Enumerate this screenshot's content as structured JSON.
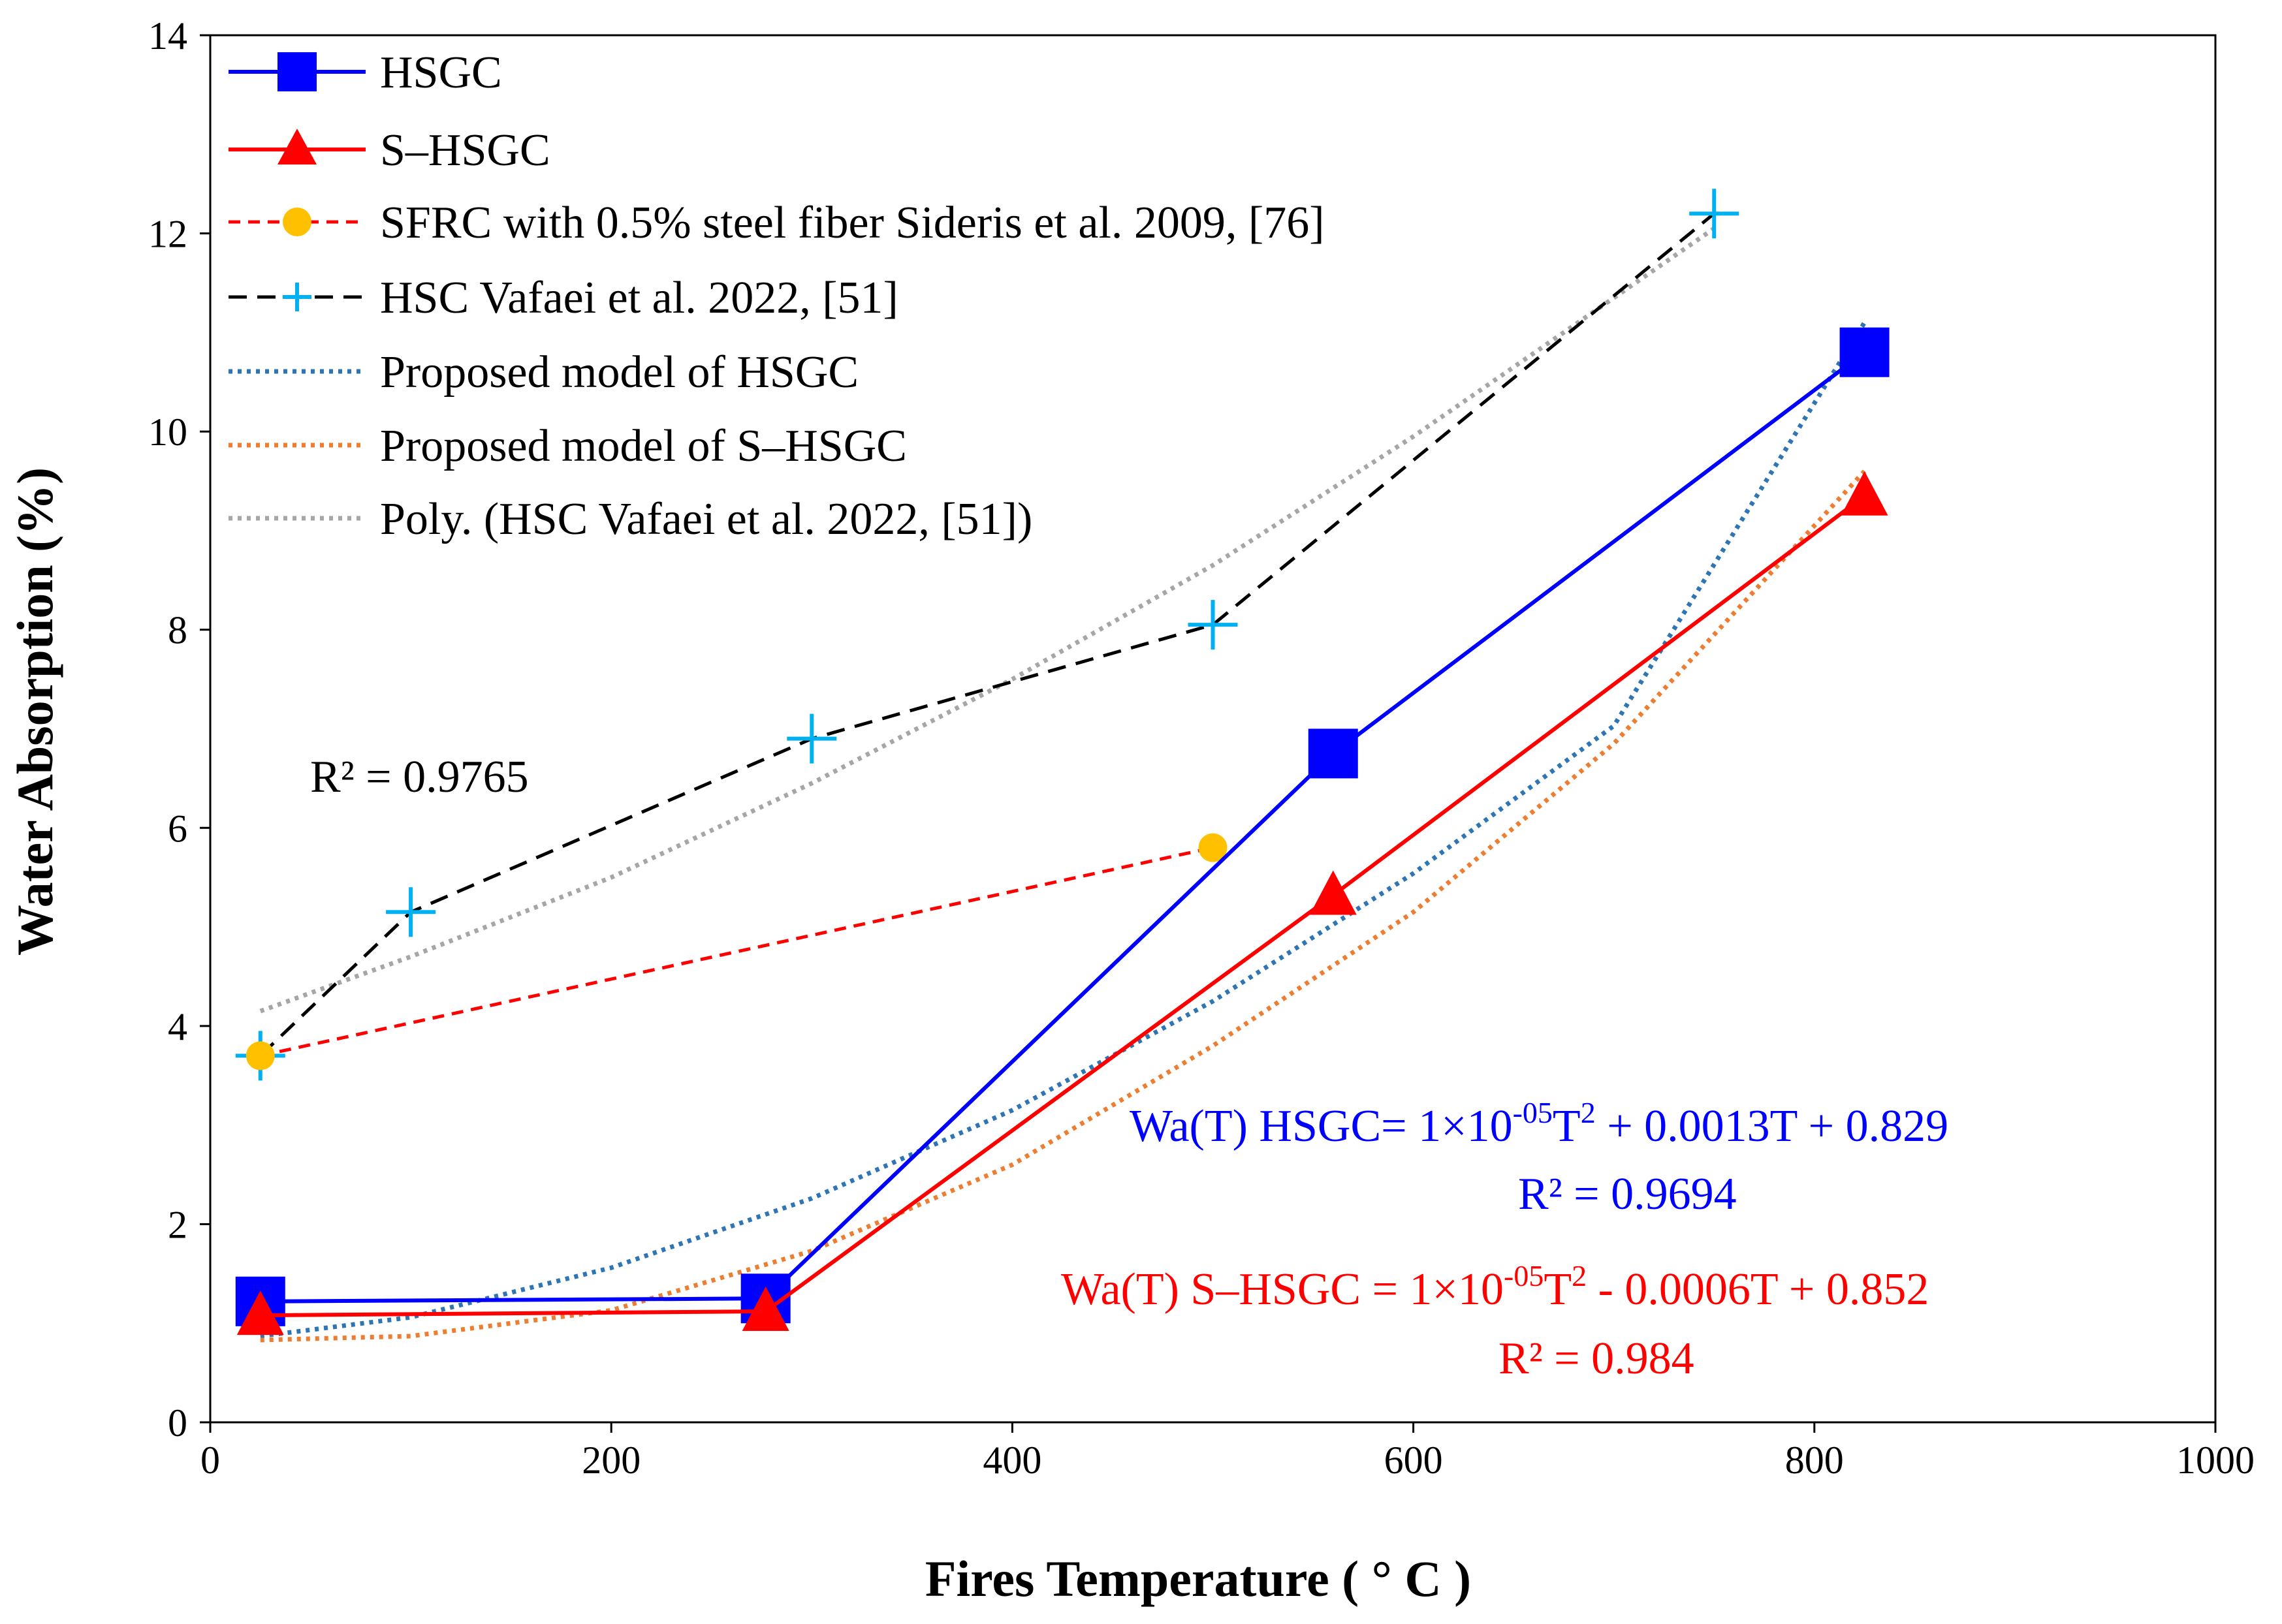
{
  "chart_data": {
    "type": "line",
    "xlabel": "Fires Temperature ( ° C )",
    "ylabel": "Water Absorption (%)",
    "xlim": [
      0,
      1000
    ],
    "ylim": [
      0,
      14
    ],
    "xticks": [
      0,
      200,
      400,
      600,
      800,
      1000
    ],
    "yticks": [
      0,
      2,
      4,
      6,
      8,
      10,
      12,
      14
    ],
    "grid": false,
    "legend_position": "top-left",
    "series": [
      {
        "name": "HSGC",
        "color": "#0000ff",
        "marker": "square",
        "line": "solid",
        "x": [
          25,
          277,
          560,
          825
        ],
        "y": [
          1.22,
          1.25,
          6.75,
          10.8
        ]
      },
      {
        "name": "S–HSGC",
        "color": "#ff0000",
        "marker": "triangle",
        "line": "solid",
        "x": [
          25,
          277,
          560,
          825
        ],
        "y": [
          1.08,
          1.12,
          5.32,
          9.35
        ]
      },
      {
        "name": "SFRC with 0.5% steel fiber Sideris et al. 2009, [76]",
        "color": "#ff0000",
        "marker_color": "#ffc000",
        "marker": "circle",
        "line": "dashed",
        "x": [
          25,
          500
        ],
        "y": [
          3.7,
          5.8
        ]
      },
      {
        "name": "HSC Vafaei et al. 2022, [51]",
        "color": "#000000",
        "marker_color": "#00b0f0",
        "marker": "plus",
        "line": "dashed",
        "x": [
          25,
          100,
          300,
          500,
          750
        ],
        "y": [
          3.7,
          5.15,
          6.9,
          8.05,
          12.2
        ]
      },
      {
        "name": "Proposed model of HSGC",
        "color": "#2e75b6",
        "line": "dotted",
        "x": [
          25,
          100,
          200,
          300,
          400,
          500,
          600,
          700,
          825
        ],
        "y": [
          0.87,
          1.06,
          1.56,
          2.26,
          3.15,
          4.25,
          5.54,
          7.03,
          11.1
        ]
      },
      {
        "name": "Proposed model of S–HSGC",
        "color": "#ed7d31",
        "line": "dotted",
        "x": [
          25,
          100,
          200,
          300,
          400,
          500,
          600,
          700,
          825
        ],
        "y": [
          0.83,
          0.87,
          1.13,
          1.73,
          2.6,
          3.8,
          5.15,
          6.85,
          9.6
        ]
      },
      {
        "name": "Poly. (HSC Vafaei et al. 2022, [51])",
        "color": "#a6a6a6",
        "line": "dotted",
        "x": [
          25,
          100,
          200,
          300,
          400,
          500,
          600,
          700,
          750
        ],
        "y": [
          4.15,
          4.7,
          5.5,
          6.45,
          7.5,
          8.65,
          9.95,
          11.35,
          12.05
        ]
      }
    ],
    "annotations": [
      {
        "text": "R² = 0.9765",
        "color": "#000000"
      },
      {
        "text": "Wa(T) HSGC= 1×10-05T2 + 0.0013T + 0.829",
        "color": "#0000ff"
      },
      {
        "text": "R² = 0.9694",
        "color": "#0000ff"
      },
      {
        "text": "Wa(T) S–HSGC = 1×10-05T2 - 0.0006T + 0.852",
        "color": "#ff0000"
      },
      {
        "text": "R² = 0.984",
        "color": "#ff0000"
      }
    ]
  },
  "labels": {
    "xlabel": "Fires Temperature ( ° C )",
    "ylabel": "Water Absorption (%)",
    "r2_hsc": "R² = 0.9765",
    "eq_hsgc_prefix": "Wa(T) HSGC= 1×10",
    "eq_hsgc_exp": "-05",
    "eq_hsgc_T": "T",
    "eq_hsgc_sq": "2",
    "eq_hsgc_rest": " + 0.0013T + 0.829",
    "r2_hsgc": "R² = 0.9694",
    "eq_shsgc_prefix": "Wa(T) S–HSGC = 1×10",
    "eq_shsgc_exp": "-05",
    "eq_shsgc_T": "T",
    "eq_shsgc_sq": "2",
    "eq_shsgc_rest": " - 0.0006T + 0.852",
    "r2_shsgc": "R² = 0.984"
  },
  "legend": [
    "HSGC",
    "S–HSGC",
    "SFRC with 0.5% steel fiber Sideris et al. 2009, [76]",
    "HSC Vafaei et al. 2022, [51]",
    "Proposed model of HSGC",
    "Proposed model of S–HSGC",
    "Poly. (HSC Vafaei et al. 2022, [51])"
  ],
  "colors": {
    "hsgc": "#0000ff",
    "shsgc": "#ff0000",
    "sfrc_marker": "#ffc000",
    "hsc_marker": "#00b0f0",
    "model_hsgc": "#2e75b6",
    "model_shsgc": "#ed7d31",
    "poly_hsc": "#a6a6a6"
  }
}
